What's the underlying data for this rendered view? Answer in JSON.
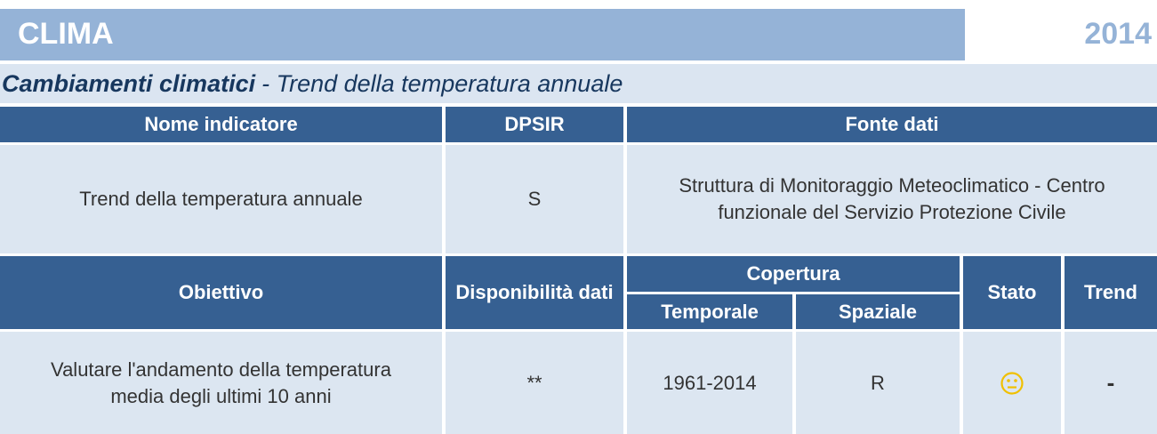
{
  "header": {
    "title": "CLIMA",
    "year": "2014"
  },
  "subtitle": {
    "topic": "Cambiamenti climatici",
    "indicator": "- Trend della temperatura annuale"
  },
  "table": {
    "header1": [
      "Nome indicatore",
      "DPSIR",
      "Fonte dati"
    ],
    "row1": [
      "Trend della temperatura annuale",
      "S",
      "Struttura di Monitoraggio Meteoclimatico - Centro funzionale del Servizio Protezione Civile"
    ],
    "header2": {
      "obiettivo": "Obiettivo",
      "disponibilita": "Disponibilità dati",
      "copertura": "Copertura",
      "temporale": "Temporale",
      "spaziale": "Spaziale",
      "stato": "Stato",
      "trend": "Trend"
    },
    "row2": {
      "obiettivo": "Valutare l'andamento della temperatura media degli ultimi 10 anni",
      "disponibilita": "**",
      "temporale": "1961-2014",
      "spaziale": "R",
      "trend": "-"
    }
  }
}
